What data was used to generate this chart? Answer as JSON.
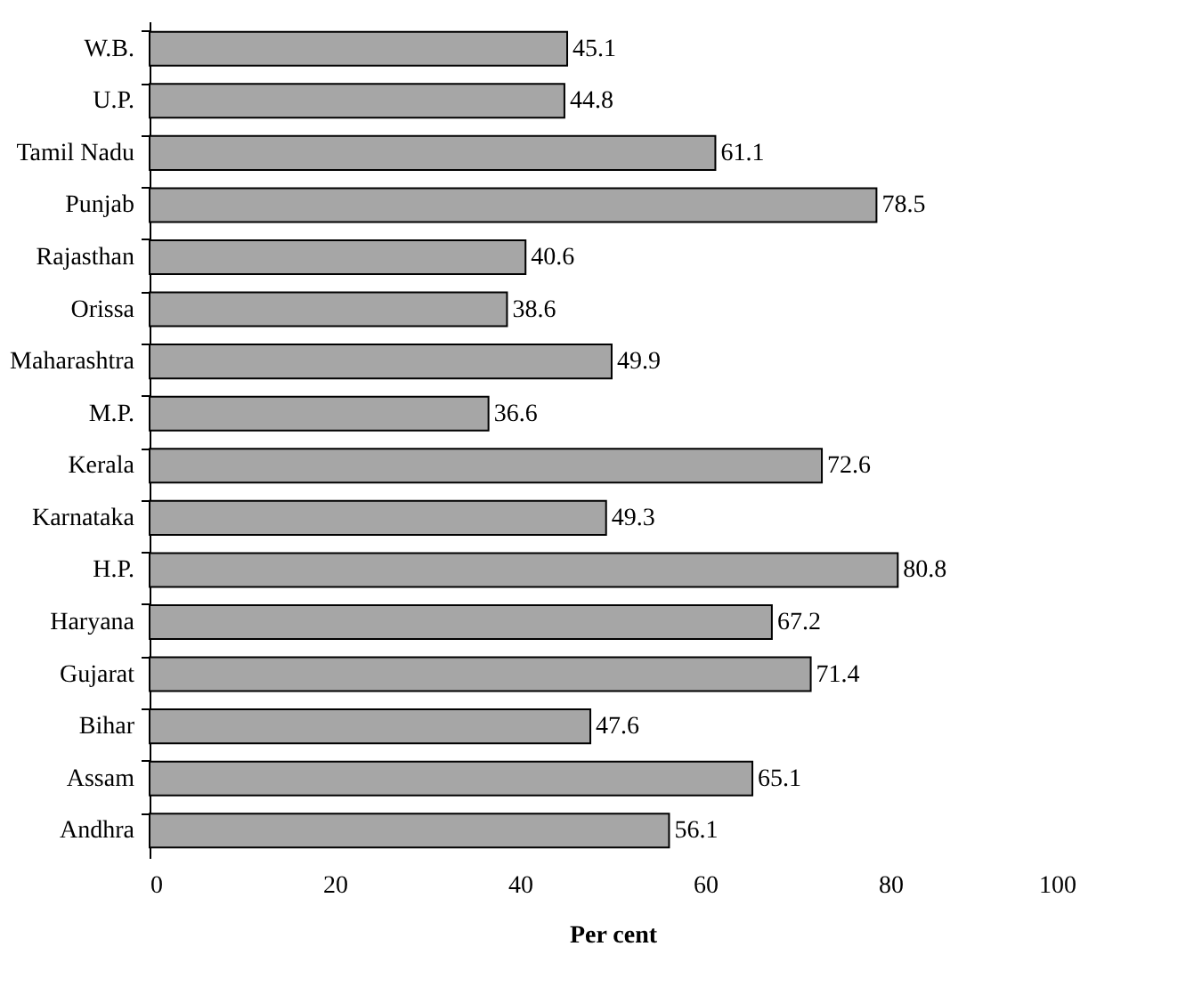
{
  "chart_data": {
    "type": "bar",
    "orientation": "horizontal",
    "xlabel": "Per cent",
    "categories": [
      "W.B.",
      "U.P.",
      "Tamil Nadu",
      "Punjab",
      "Rajasthan",
      "Orissa",
      "Maharashtra",
      "M.P.",
      "Kerala",
      "Karnataka",
      "H.P.",
      "Haryana",
      "Gujarat",
      "Bihar",
      "Assam",
      "Andhra"
    ],
    "values": [
      45.1,
      44.8,
      61.1,
      78.5,
      40.6,
      38.6,
      49.9,
      36.6,
      72.6,
      49.3,
      80.8,
      67.2,
      71.4,
      47.6,
      65.1,
      56.1
    ],
    "color": "#a6a6a6",
    "xlim": [
      0,
      100
    ],
    "xticks": [
      0,
      20,
      40,
      60,
      80,
      100
    ],
    "grid": false,
    "data_labels": true
  }
}
